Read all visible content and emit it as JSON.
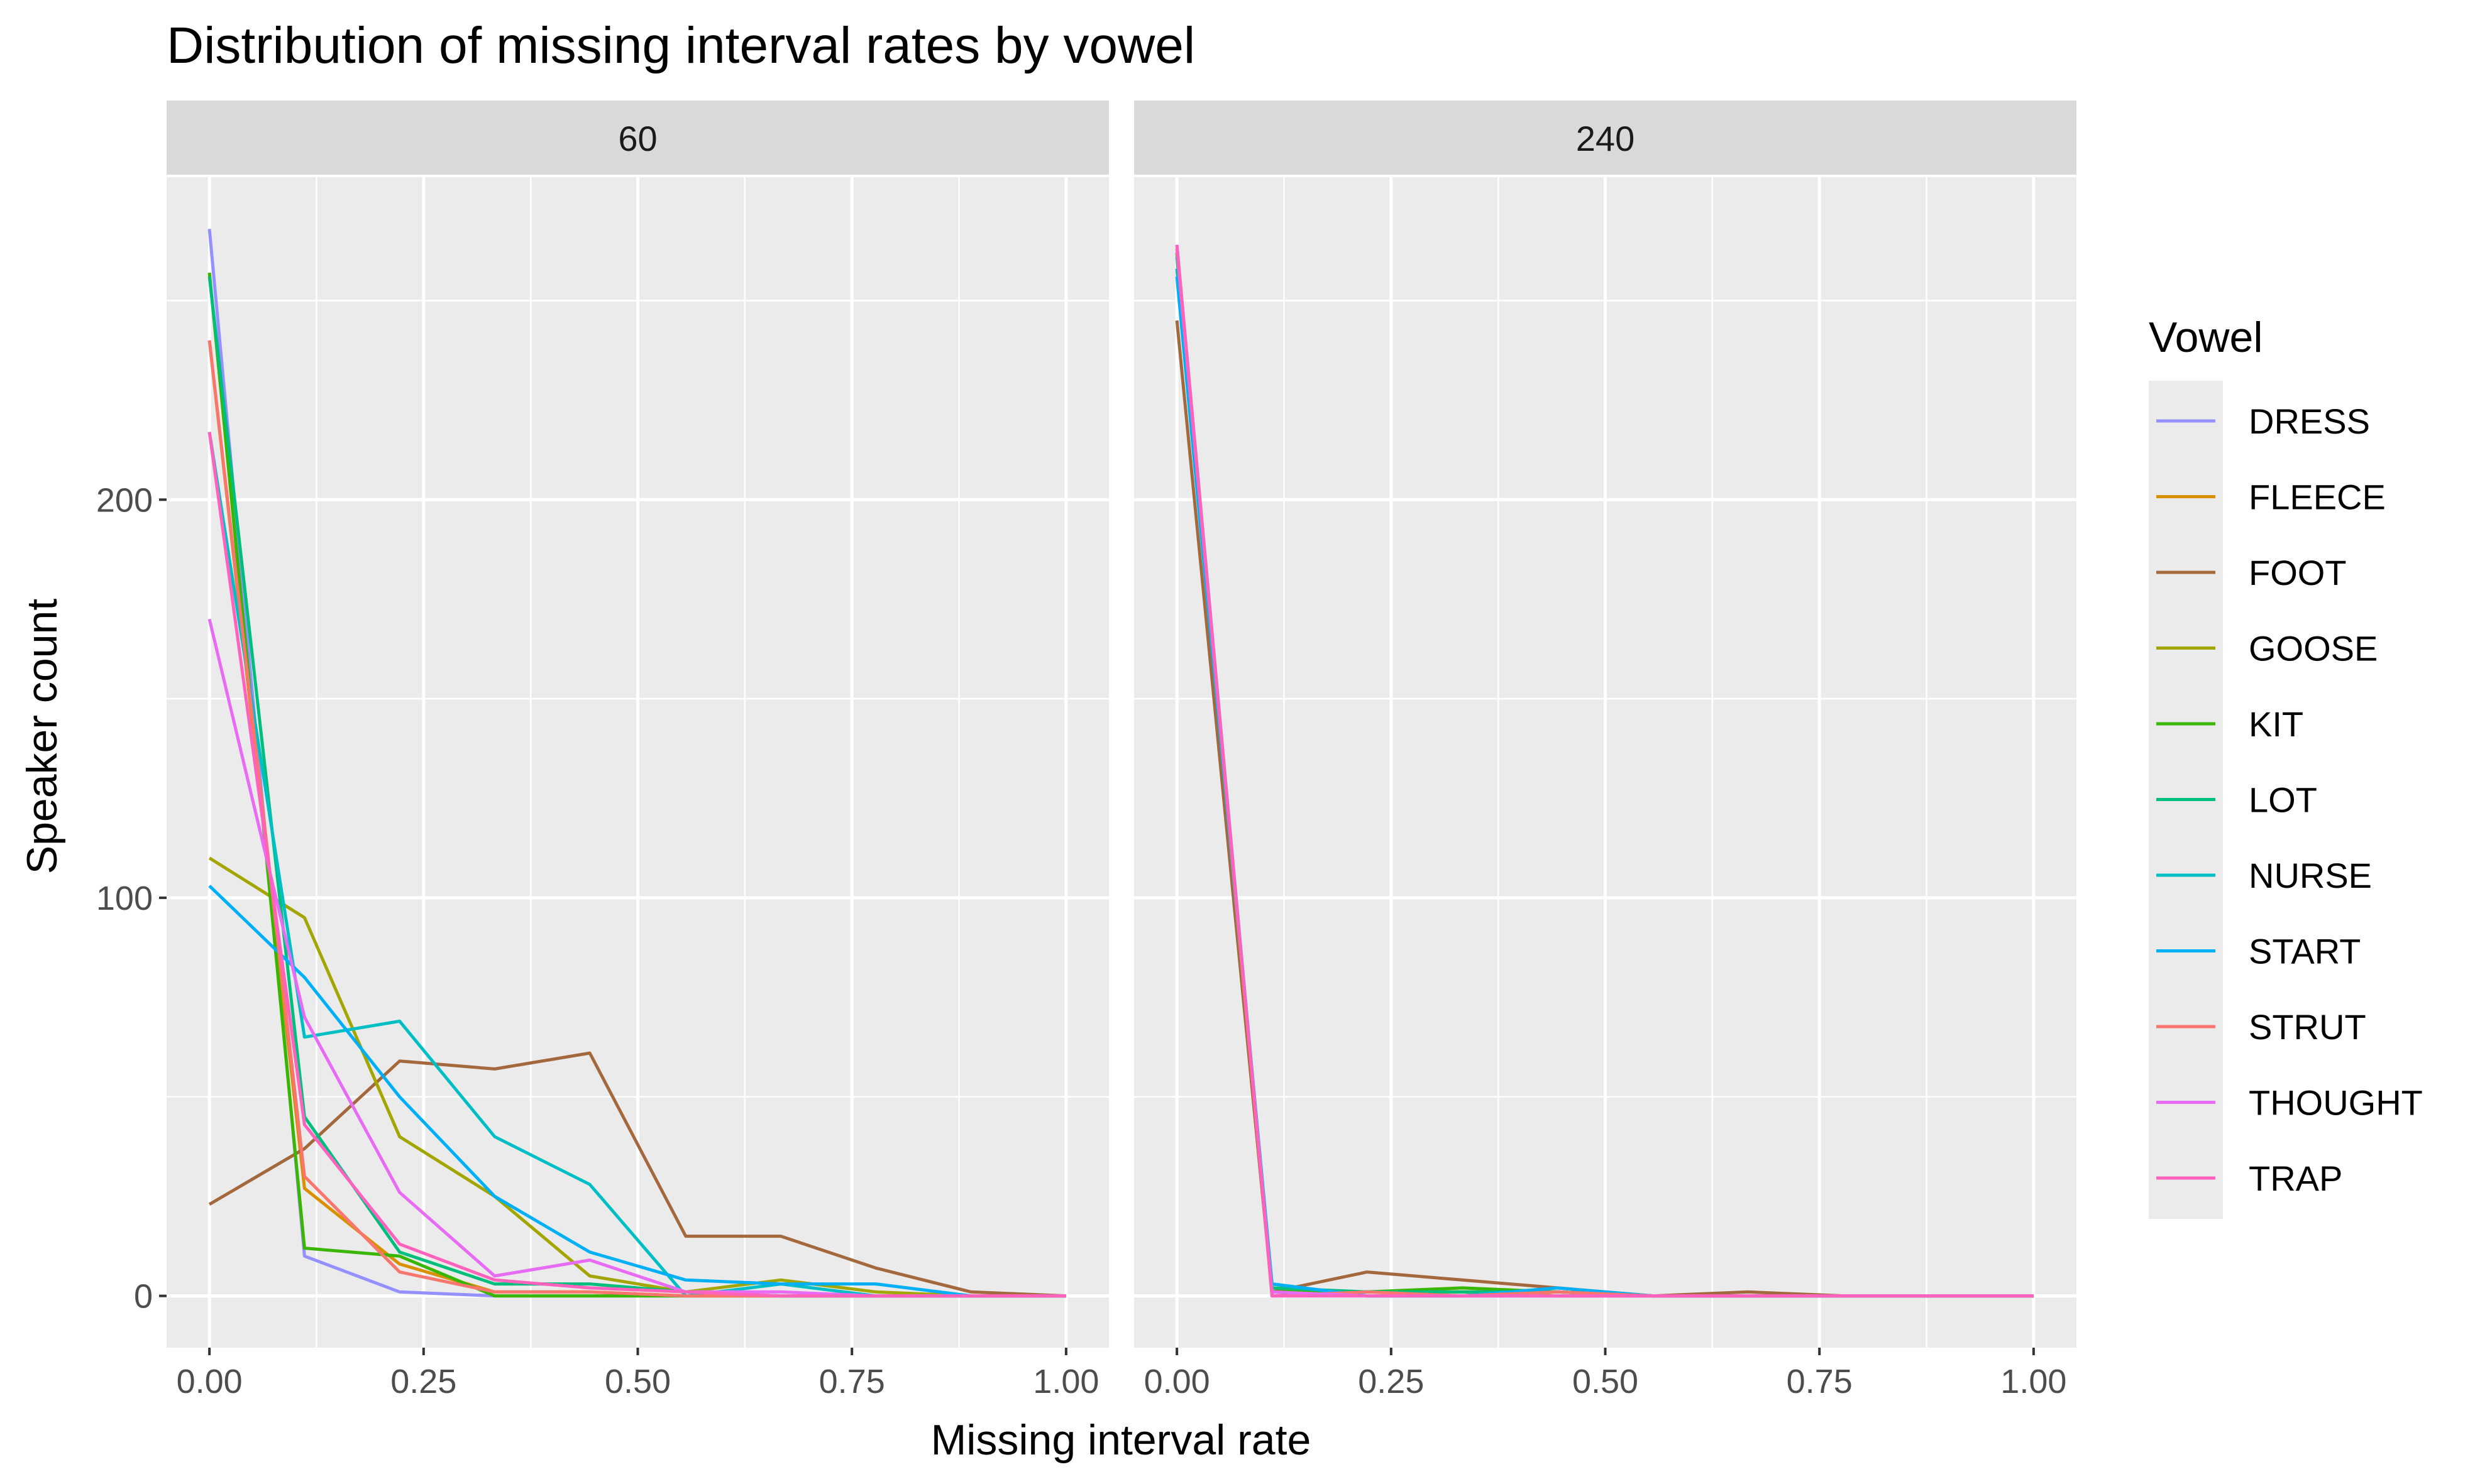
{
  "chart_data": {
    "type": "line",
    "title": "Distribution of missing interval rates by vowel",
    "xlabel": "Missing interval rate",
    "ylabel": "Speaker count",
    "xlim": [
      -0.05,
      1.05
    ],
    "ylim": [
      -13,
      281
    ],
    "xticks": [
      0,
      0.25,
      0.5,
      0.75,
      1
    ],
    "xtick_labels": [
      "0.00",
      "0.25",
      "0.50",
      "0.75",
      "1.00"
    ],
    "yticks": [
      0,
      100,
      200
    ],
    "ytick_labels": [
      "0",
      "100",
      "200"
    ],
    "grid": true,
    "legend": {
      "title": "Vowel",
      "position": "right"
    },
    "panels": [
      {
        "label": "60",
        "series": [
          {
            "name": "DRESS",
            "color": "#9590FF",
            "points": [
              [
                0,
                268
              ],
              [
                0.111,
                10
              ],
              [
                0.222,
                1
              ],
              [
                0.333,
                0
              ],
              [
                0.444,
                0
              ],
              [
                0.556,
                0
              ],
              [
                0.667,
                0
              ],
              [
                0.778,
                0
              ],
              [
                0.889,
                0
              ],
              [
                1,
                0
              ]
            ]
          },
          {
            "name": "FLEECE",
            "color": "#D89000",
            "points": [
              [
                0,
                240
              ],
              [
                0.111,
                27
              ],
              [
                0.222,
                8
              ],
              [
                0.333,
                1
              ],
              [
                0.444,
                1
              ],
              [
                0.556,
                0
              ],
              [
                0.667,
                0
              ],
              [
                0.778,
                0
              ],
              [
                0.889,
                0
              ],
              [
                1,
                0
              ]
            ]
          },
          {
            "name": "FOOT",
            "color": "#A3683C",
            "points": [
              [
                0,
                23
              ],
              [
                0.111,
                37
              ],
              [
                0.222,
                59
              ],
              [
                0.333,
                57
              ],
              [
                0.444,
                61
              ],
              [
                0.556,
                15
              ],
              [
                0.667,
                15
              ],
              [
                0.778,
                7
              ],
              [
                0.889,
                1
              ],
              [
                1,
                0
              ]
            ]
          },
          {
            "name": "GOOSE",
            "color": "#A3A500",
            "points": [
              [
                0,
                110
              ],
              [
                0.111,
                95
              ],
              [
                0.222,
                40
              ],
              [
                0.333,
                25
              ],
              [
                0.444,
                5
              ],
              [
                0.556,
                1
              ],
              [
                0.667,
                4
              ],
              [
                0.778,
                1
              ],
              [
                0.889,
                0
              ],
              [
                1,
                0
              ]
            ]
          },
          {
            "name": "KIT",
            "color": "#39B600",
            "points": [
              [
                0,
                257
              ],
              [
                0.111,
                12
              ],
              [
                0.222,
                10
              ],
              [
                0.333,
                0
              ],
              [
                0.444,
                0
              ],
              [
                0.556,
                0
              ],
              [
                0.667,
                0
              ],
              [
                0.778,
                0
              ],
              [
                0.889,
                0
              ],
              [
                1,
                0
              ]
            ]
          },
          {
            "name": "LOT",
            "color": "#00BF7D",
            "points": [
              [
                0,
                256
              ],
              [
                0.111,
                45
              ],
              [
                0.222,
                11
              ],
              [
                0.333,
                3
              ],
              [
                0.444,
                3
              ],
              [
                0.556,
                1
              ],
              [
                0.667,
                0
              ],
              [
                0.778,
                0
              ],
              [
                0.889,
                0
              ],
              [
                1,
                0
              ]
            ]
          },
          {
            "name": "NURSE",
            "color": "#00BFC4",
            "points": [
              [
                0,
                217
              ],
              [
                0.111,
                65
              ],
              [
                0.222,
                69
              ],
              [
                0.333,
                40
              ],
              [
                0.444,
                28
              ],
              [
                0.556,
                0
              ],
              [
                0.667,
                3
              ],
              [
                0.778,
                0
              ],
              [
                0.889,
                0
              ],
              [
                1,
                0
              ]
            ]
          },
          {
            "name": "START",
            "color": "#00B0F6",
            "points": [
              [
                0,
                103
              ],
              [
                0.111,
                80
              ],
              [
                0.222,
                50
              ],
              [
                0.333,
                25
              ],
              [
                0.444,
                11
              ],
              [
                0.556,
                4
              ],
              [
                0.667,
                3
              ],
              [
                0.778,
                3
              ],
              [
                0.889,
                0
              ],
              [
                1,
                0
              ]
            ]
          },
          {
            "name": "STRUT",
            "color": "#F8766D",
            "points": [
              [
                0,
                240
              ],
              [
                0.111,
                30
              ],
              [
                0.222,
                6
              ],
              [
                0.333,
                1
              ],
              [
                0.444,
                1
              ],
              [
                0.556,
                0
              ],
              [
                0.667,
                0
              ],
              [
                0.778,
                0
              ],
              [
                0.889,
                0
              ],
              [
                1,
                0
              ]
            ]
          },
          {
            "name": "THOUGHT",
            "color": "#E76BF3",
            "points": [
              [
                0,
                170
              ],
              [
                0.111,
                70
              ],
              [
                0.222,
                26
              ],
              [
                0.333,
                5
              ],
              [
                0.444,
                9
              ],
              [
                0.556,
                1
              ],
              [
                0.667,
                1
              ],
              [
                0.778,
                0
              ],
              [
                0.889,
                0
              ],
              [
                1,
                0
              ]
            ]
          },
          {
            "name": "TRAP",
            "color": "#FF62BC",
            "points": [
              [
                0,
                217
              ],
              [
                0.111,
                43
              ],
              [
                0.222,
                13
              ],
              [
                0.333,
                4
              ],
              [
                0.444,
                2
              ],
              [
                0.556,
                1
              ],
              [
                0.667,
                0
              ],
              [
                0.778,
                0
              ],
              [
                0.889,
                0
              ],
              [
                1,
                0
              ]
            ]
          }
        ]
      },
      {
        "label": "240",
        "series": [
          {
            "name": "DRESS",
            "color": "#9590FF",
            "points": [
              [
                0,
                264
              ],
              [
                0.111,
                1
              ],
              [
                0.222,
                0
              ],
              [
                0.333,
                0
              ],
              [
                0.444,
                0
              ],
              [
                0.556,
                0
              ],
              [
                0.667,
                0
              ],
              [
                0.778,
                0
              ],
              [
                0.889,
                0
              ],
              [
                1,
                0
              ]
            ]
          },
          {
            "name": "FLEECE",
            "color": "#D89000",
            "points": [
              [
                0,
                262
              ],
              [
                0.111,
                1
              ],
              [
                0.222,
                1
              ],
              [
                0.333,
                1
              ],
              [
                0.444,
                0
              ],
              [
                0.556,
                0
              ],
              [
                0.667,
                0
              ],
              [
                0.778,
                0
              ],
              [
                0.889,
                0
              ],
              [
                1,
                0
              ]
            ]
          },
          {
            "name": "FOOT",
            "color": "#A3683C",
            "points": [
              [
                0,
                245
              ],
              [
                0.111,
                1
              ],
              [
                0.222,
                6
              ],
              [
                0.333,
                4
              ],
              [
                0.444,
                2
              ],
              [
                0.556,
                0
              ],
              [
                0.667,
                1
              ],
              [
                0.778,
                0
              ],
              [
                0.889,
                0
              ],
              [
                1,
                0
              ]
            ]
          },
          {
            "name": "GOOSE",
            "color": "#A3A500",
            "points": [
              [
                0,
                258
              ],
              [
                0.111,
                1
              ],
              [
                0.222,
                1
              ],
              [
                0.333,
                1
              ],
              [
                0.444,
                1
              ],
              [
                0.556,
                0
              ],
              [
                0.667,
                0
              ],
              [
                0.778,
                0
              ],
              [
                0.889,
                0
              ],
              [
                1,
                0
              ]
            ]
          },
          {
            "name": "KIT",
            "color": "#39B600",
            "points": [
              [
                0,
                262
              ],
              [
                0.111,
                1
              ],
              [
                0.222,
                1
              ],
              [
                0.333,
                2
              ],
              [
                0.444,
                1
              ],
              [
                0.556,
                0
              ],
              [
                0.667,
                0
              ],
              [
                0.778,
                0
              ],
              [
                0.889,
                0
              ],
              [
                1,
                0
              ]
            ]
          },
          {
            "name": "LOT",
            "color": "#00BF7D",
            "points": [
              [
                0,
                261
              ],
              [
                0.111,
                2
              ],
              [
                0.222,
                1
              ],
              [
                0.333,
                1
              ],
              [
                0.444,
                1
              ],
              [
                0.556,
                0
              ],
              [
                0.667,
                0
              ],
              [
                0.778,
                0
              ],
              [
                0.889,
                0
              ],
              [
                1,
                0
              ]
            ]
          },
          {
            "name": "NURSE",
            "color": "#00BFC4",
            "points": [
              [
                0,
                258
              ],
              [
                0.111,
                3
              ],
              [
                0.222,
                0
              ],
              [
                0.333,
                0
              ],
              [
                0.444,
                1
              ],
              [
                0.556,
                0
              ],
              [
                0.667,
                0
              ],
              [
                0.778,
                0
              ],
              [
                0.889,
                0
              ],
              [
                1,
                0
              ]
            ]
          },
          {
            "name": "START",
            "color": "#00B0F6",
            "points": [
              [
                0,
                256
              ],
              [
                0.111,
                3
              ],
              [
                0.222,
                0
              ],
              [
                0.333,
                0
              ],
              [
                0.444,
                2
              ],
              [
                0.556,
                0
              ],
              [
                0.667,
                0
              ],
              [
                0.778,
                0
              ],
              [
                0.889,
                0
              ],
              [
                1,
                0
              ]
            ]
          },
          {
            "name": "STRUT",
            "color": "#F8766D",
            "points": [
              [
                0,
                263
              ],
              [
                0.111,
                0
              ],
              [
                0.222,
                1
              ],
              [
                0.333,
                0
              ],
              [
                0.444,
                1
              ],
              [
                0.556,
                0
              ],
              [
                0.667,
                0
              ],
              [
                0.778,
                0
              ],
              [
                0.889,
                0
              ],
              [
                1,
                0
              ]
            ]
          },
          {
            "name": "THOUGHT",
            "color": "#E76BF3",
            "points": [
              [
                0,
                263
              ],
              [
                0.111,
                1
              ],
              [
                0.222,
                0
              ],
              [
                0.333,
                0
              ],
              [
                0.444,
                0
              ],
              [
                0.556,
                0
              ],
              [
                0.667,
                0
              ],
              [
                0.778,
                0
              ],
              [
                0.889,
                0
              ],
              [
                1,
                0
              ]
            ]
          },
          {
            "name": "TRAP",
            "color": "#FF62BC",
            "points": [
              [
                0,
                264
              ],
              [
                0.111,
                0
              ],
              [
                0.222,
                0
              ],
              [
                0.333,
                0
              ],
              [
                0.444,
                0
              ],
              [
                0.556,
                0
              ],
              [
                0.667,
                0
              ],
              [
                0.778,
                0
              ],
              [
                0.889,
                0
              ],
              [
                1,
                0
              ]
            ]
          }
        ]
      }
    ]
  }
}
